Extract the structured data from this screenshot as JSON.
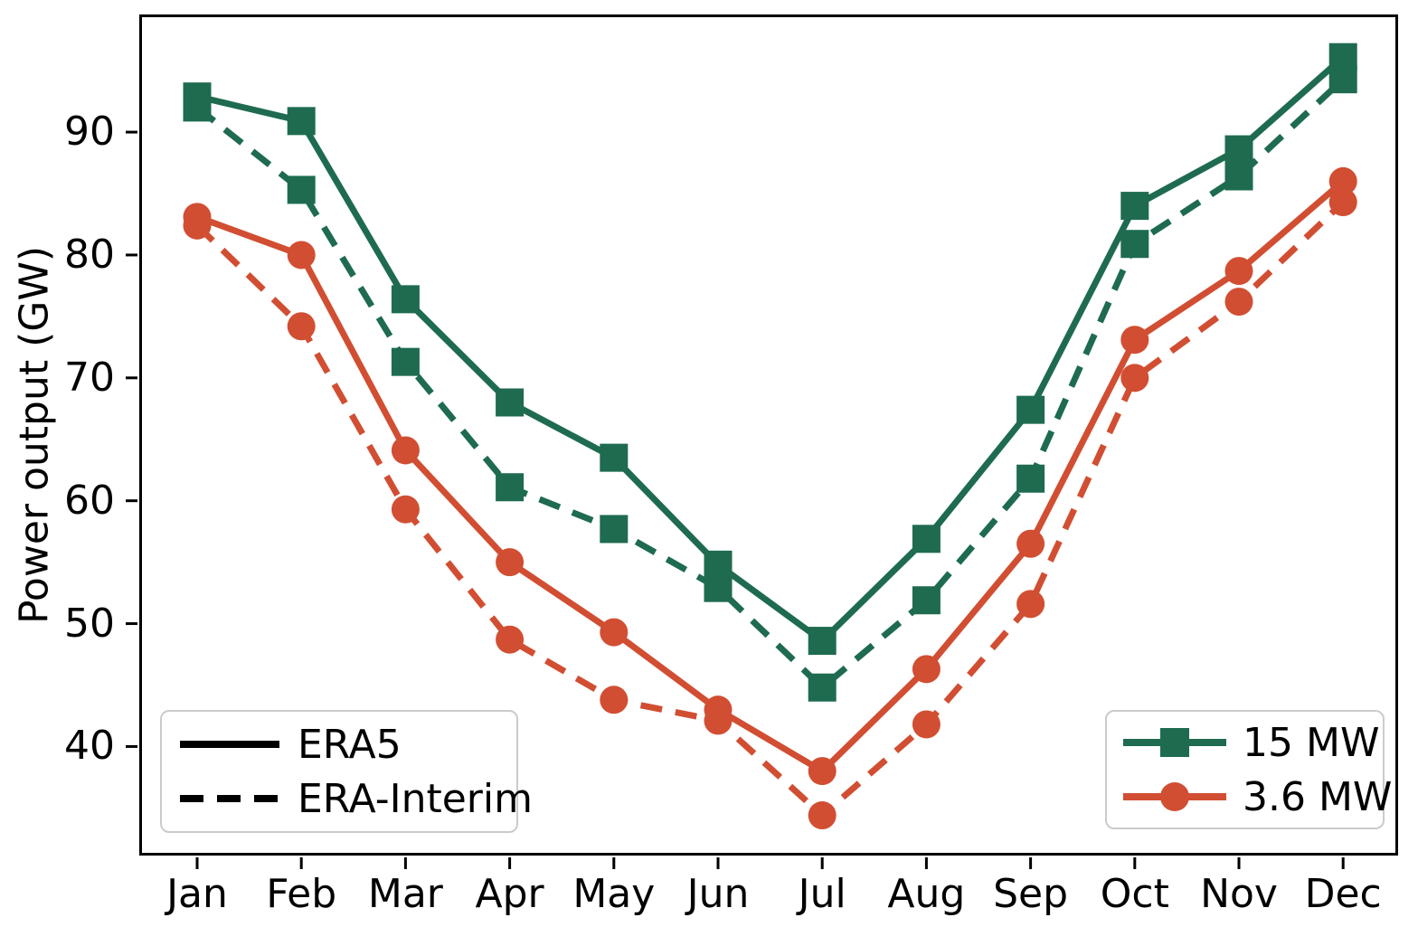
{
  "figure": {
    "background": "#ffffff"
  },
  "colors": {
    "turbine_15mw": "#1e6b50",
    "turbine_36mw": "#d14e32",
    "axis": "#000000",
    "legend_border": "#cbcbcb"
  },
  "chart_data": {
    "type": "line",
    "title": "",
    "xlabel": "",
    "ylabel": "Power output (GW)",
    "grid": false,
    "categories": [
      "Jan",
      "Feb",
      "Mar",
      "Apr",
      "May",
      "Jun",
      "Jul",
      "Aug",
      "Sep",
      "Oct",
      "Nov",
      "Dec"
    ],
    "y_ticks": [
      40,
      50,
      60,
      70,
      80,
      90
    ],
    "ylim": [
      31.2,
      99.5
    ],
    "series": [
      {
        "name": "15 MW — ERA5",
        "turbine": "15 MW",
        "dataset": "ERA5",
        "color": "#1e6b50",
        "line": "solid",
        "marker": "square",
        "values": [
          92.9,
          90.9,
          76.4,
          68.0,
          63.5,
          54.8,
          48.6,
          56.9,
          67.4,
          84.0,
          88.6,
          96.1
        ]
      },
      {
        "name": "15 MW — ERA-Interim",
        "turbine": "15 MW",
        "dataset": "ERA-Interim",
        "color": "#1e6b50",
        "line": "dashed",
        "marker": "square",
        "values": [
          92.0,
          85.3,
          71.3,
          61.1,
          57.7,
          52.9,
          44.8,
          51.9,
          61.8,
          80.9,
          86.4,
          94.3
        ]
      },
      {
        "name": "3.6 MW — ERA5",
        "turbine": "3.6 MW",
        "dataset": "ERA5",
        "color": "#d14e32",
        "line": "solid",
        "marker": "circle",
        "values": [
          83.1,
          80.0,
          64.1,
          55.0,
          49.3,
          43.0,
          38.0,
          46.3,
          56.5,
          73.1,
          78.7,
          86.0
        ]
      },
      {
        "name": "3.6 MW — ERA-Interim",
        "turbine": "3.6 MW",
        "dataset": "ERA-Interim",
        "color": "#d14e32",
        "line": "dashed",
        "marker": "circle",
        "values": [
          82.4,
          74.2,
          59.3,
          48.7,
          43.8,
          42.1,
          34.4,
          41.8,
          51.6,
          70.0,
          76.2,
          84.3
        ]
      }
    ],
    "legends": {
      "linestyle": {
        "position": "lower left",
        "items": [
          {
            "label": "ERA5",
            "style": "solid"
          },
          {
            "label": "ERA-Interim",
            "style": "dashed"
          }
        ]
      },
      "turbine": {
        "position": "lower right",
        "items": [
          {
            "label": "15 MW",
            "color": "#1e6b50",
            "marker": "square"
          },
          {
            "label": "3.6 MW",
            "color": "#d14e32",
            "marker": "circle"
          }
        ]
      }
    }
  }
}
